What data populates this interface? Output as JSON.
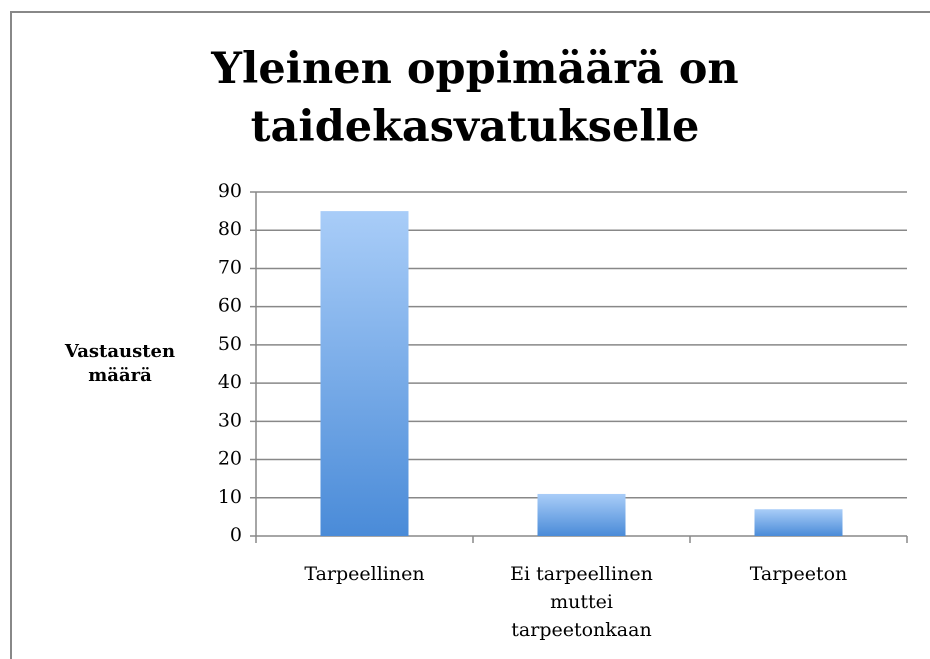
{
  "chart_data": {
    "type": "bar",
    "title": "Yleinen oppimäärä on taidekasvatukselle",
    "y_label": "Vastausten määrä",
    "categories": [
      "Tarpeellinen",
      "Ei tarpeellinen muttei tarpeetonkaan",
      "Tarpeeton"
    ],
    "values": [
      85,
      11,
      7
    ],
    "color": "#4a8bd8",
    "ylim": [
      0,
      90
    ],
    "yticks": [
      0,
      10,
      20,
      30,
      40,
      50,
      60,
      70,
      80,
      90
    ],
    "grid": true
  }
}
